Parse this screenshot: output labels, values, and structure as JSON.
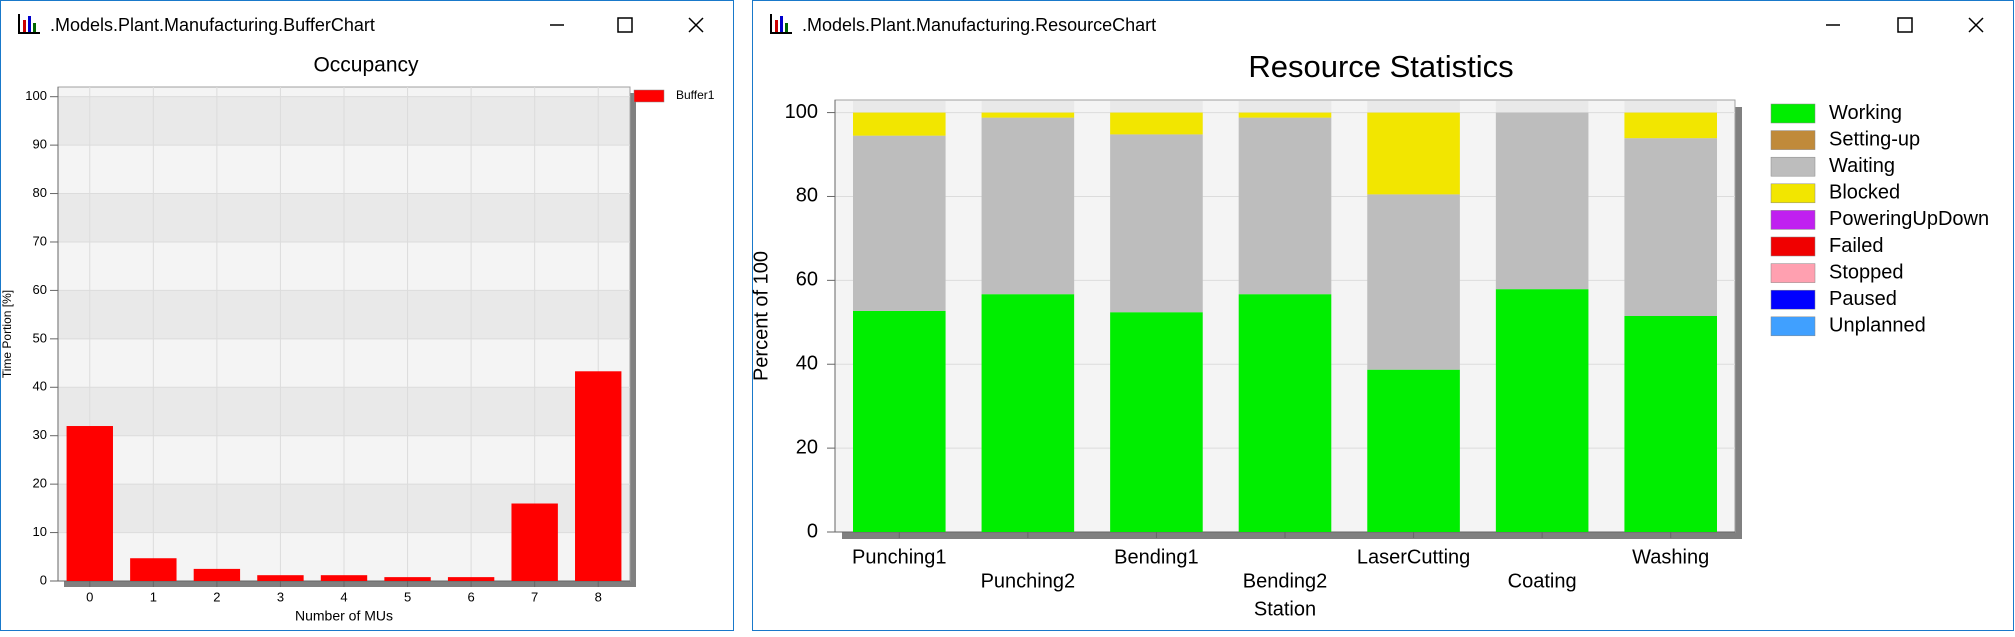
{
  "windows": [
    {
      "title": ".Models.Plant.Manufacturing.BufferChart"
    },
    {
      "title": ".Models.Plant.Manufacturing.ResourceChart"
    }
  ],
  "chart_data": [
    {
      "type": "bar",
      "title": "Occupancy",
      "x_label": "Number of MUs",
      "y_label": "Time Portion [%]",
      "categories": [
        "0",
        "1",
        "2",
        "3",
        "4",
        "5",
        "6",
        "7",
        "8"
      ],
      "series": [
        {
          "name": "Buffer1",
          "color": "#ff0000",
          "values": [
            32,
            4.7,
            2.5,
            1.2,
            1.2,
            0.8,
            0.8,
            16,
            43.3
          ]
        }
      ],
      "ylim": [
        0,
        102
      ],
      "yticks": [
        0,
        10,
        20,
        30,
        40,
        50,
        60,
        70,
        80,
        90,
        100
      ],
      "grid": true,
      "legend": "right"
    },
    {
      "type": "stacked_bar",
      "title": "Resource Statistics",
      "x_label": "Station",
      "y_label": "Percent of 100",
      "categories": [
        "Punching1",
        "Punching2",
        "Bending1",
        "Bending2",
        "LaserCutting",
        "Coating",
        "Washing"
      ],
      "series": [
        {
          "name": "Working",
          "color": "#00ee00",
          "values": [
            52.7,
            56.7,
            52.4,
            56.7,
            38.7,
            57.9,
            51.5
          ]
        },
        {
          "name": "Setting-up",
          "color": "#c08a3a",
          "values": [
            0,
            0,
            0,
            0,
            0,
            0,
            0
          ]
        },
        {
          "name": "Waiting",
          "color": "#bdbdbd",
          "values": [
            41.8,
            42.1,
            42.4,
            42.1,
            41.8,
            42.1,
            42.4
          ]
        },
        {
          "name": "Blocked",
          "color": "#f2e600",
          "values": [
            5.5,
            1.2,
            5.2,
            1.2,
            19.5,
            0,
            6.1
          ]
        },
        {
          "name": "PoweringUpDown",
          "color": "#c020f0",
          "values": [
            0,
            0,
            0,
            0,
            0,
            0,
            0
          ]
        },
        {
          "name": "Failed",
          "color": "#f00000",
          "values": [
            0,
            0,
            0,
            0,
            0,
            0,
            0
          ]
        },
        {
          "name": "Stopped",
          "color": "#ffa0b0",
          "values": [
            0,
            0,
            0,
            0,
            0,
            0,
            0
          ]
        },
        {
          "name": "Paused",
          "color": "#0000ff",
          "values": [
            0,
            0,
            0,
            0,
            0,
            0,
            0
          ]
        },
        {
          "name": "Unplanned",
          "color": "#40a0ff",
          "values": [
            0,
            0,
            0,
            0,
            0,
            0,
            0
          ]
        }
      ],
      "ylim": [
        0,
        103
      ],
      "yticks": [
        0,
        20,
        40,
        60,
        80,
        100
      ],
      "grid": true,
      "legend": "right"
    }
  ]
}
